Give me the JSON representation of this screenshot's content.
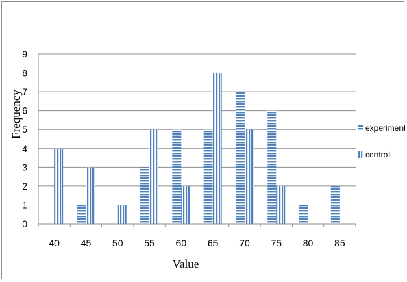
{
  "chart_data": {
    "type": "bar",
    "title": "",
    "xlabel": "Value",
    "ylabel": "Frequency",
    "ylim": [
      0,
      9
    ],
    "yticks": [
      0,
      1,
      2,
      3,
      4,
      5,
      6,
      7,
      8,
      9
    ],
    "grid": true,
    "legend_position": "right",
    "categories": [
      "40",
      "45",
      "50",
      "55",
      "60",
      "65",
      "70",
      "75",
      "80",
      "85"
    ],
    "series": [
      {
        "name": "experiment",
        "pattern": "horizontal-stripes",
        "color": "#4f81bd",
        "values": [
          0,
          1,
          0,
          3,
          5,
          5,
          7,
          6,
          1,
          2
        ]
      },
      {
        "name": "control",
        "pattern": "vertical-stripes",
        "color": "#4f81bd",
        "values": [
          4,
          3,
          1,
          5,
          2,
          8,
          5,
          2,
          0,
          0
        ]
      }
    ]
  }
}
